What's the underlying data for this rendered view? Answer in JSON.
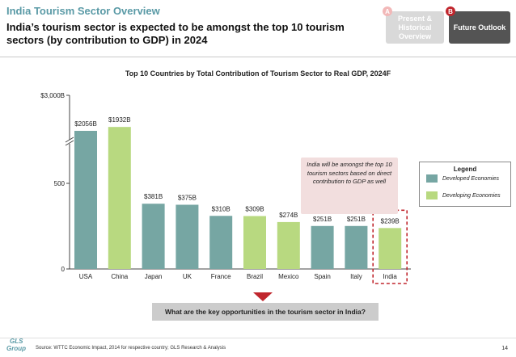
{
  "header": {
    "title": "India Tourism Sector Overview",
    "subtitle": "India’s tourism sector is expected to be amongst the top 10 tourism sectors (by contribution to GDP) in 2024"
  },
  "tabs": [
    {
      "badge": "A",
      "label": "Present & Historical Overview"
    },
    {
      "badge": "B",
      "label": "Future Outlook"
    }
  ],
  "chart_data": {
    "type": "bar",
    "title": "Top 10 Countries by Total Contribution of Tourism Sector to Real GDP, 2024F",
    "categories": [
      "USA",
      "China",
      "Japan",
      "UK",
      "France",
      "Brazil",
      "Mexico",
      "Spain",
      "Italy",
      "India"
    ],
    "values": [
      2056,
      1932,
      381,
      375,
      310,
      309,
      274,
      251,
      251,
      239
    ],
    "value_labels": [
      "$2056B",
      "$1932B",
      "$381B",
      "$375B",
      "$310B",
      "$309B",
      "$274B",
      "$251B",
      "$251B",
      "$239B"
    ],
    "groups": [
      "Developed Economies",
      "Developing Economies",
      "Developed Economies",
      "Developed Economies",
      "Developed Economies",
      "Developing Economies",
      "Developing Economies",
      "Developed Economies",
      "Developed Economies",
      "Developing Economies"
    ],
    "yticks": [
      "0",
      "500",
      "$3,000B"
    ],
    "axis_break": true,
    "highlight": "India",
    "legend": {
      "title": "Legend",
      "items": [
        {
          "label": "Developed Economies",
          "color": "#76a6a3"
        },
        {
          "label": "Developing Economies",
          "color": "#b8d980"
        }
      ],
      "position": "right"
    },
    "annotation": "India will be amongst the top 10 tourism sectors based on direct contribution to GDP as well",
    "colors": {
      "highlight_box": "#c0262d"
    }
  },
  "question": "What are the key opportunities in the tourism sector in India?",
  "footer": {
    "logo_line1": "GLS",
    "logo_line2": "Group",
    "source": "Source: WTTC Economic Impact,  2014 for respective country; GLS Research & Analysis",
    "page": "14"
  }
}
